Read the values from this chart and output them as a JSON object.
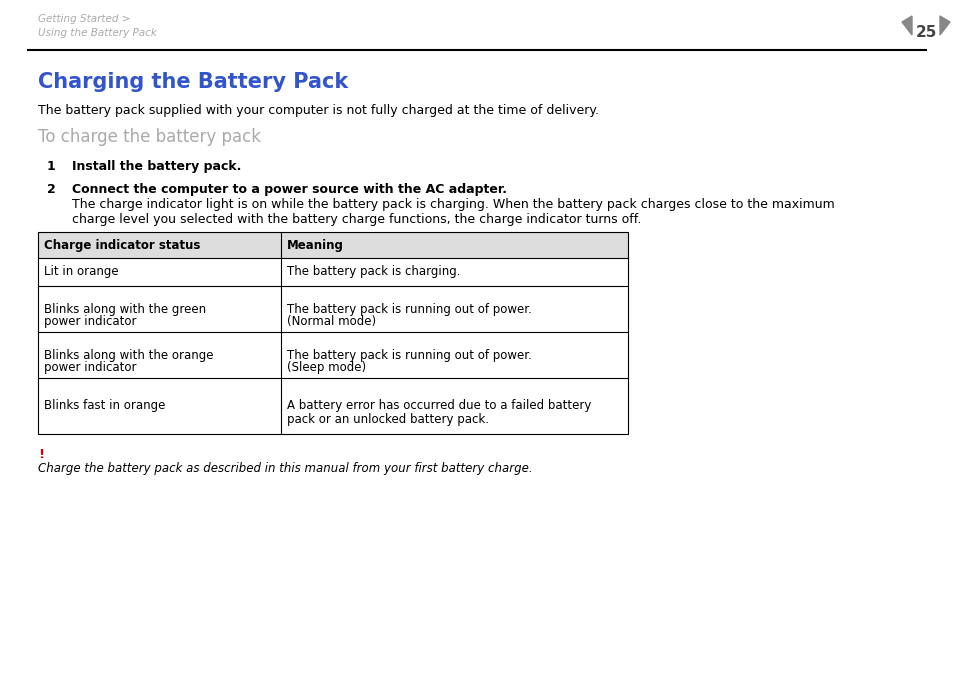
{
  "bg_color": "#ffffff",
  "header_breadcrumb_line1": "Getting Started >",
  "header_breadcrumb_line2": "Using the Battery Pack",
  "header_breadcrumb_color": "#aaaaaa",
  "page_number": "25",
  "page_number_color": "#444444",
  "title": "Charging the Battery Pack",
  "title_color": "#3355cc",
  "title_fontsize": 15,
  "body_text_color": "#000000",
  "subheading": "To charge the battery pack",
  "subheading_color": "#aaaaaa",
  "subheading_fontsize": 12,
  "intro_text": "The battery pack supplied with your computer is not fully charged at the time of delivery.",
  "step1_num": "1",
  "step1_text": "Install the battery pack.",
  "step2_num": "2",
  "step2_line1": "Connect the computer to a power source with the AC adapter.",
  "step2_line2a": "The charge indicator light is on while the battery pack is charging. When the battery pack charges close to the maximum",
  "step2_line2b": "charge level you selected with the battery charge functions, the charge indicator turns off.",
  "table_col1_header": "Charge indicator status",
  "table_col2_header": "Meaning",
  "table_rows": [
    [
      "Lit in orange",
      "The battery pack is charging."
    ],
    [
      "Blinks along with the green\npower indicator",
      "The battery pack is running out of power.\n(Normal mode)"
    ],
    [
      "Blinks along with the orange\npower indicator",
      "The battery pack is running out of power.\n(Sleep mode)"
    ],
    [
      "Blinks fast in orange",
      "A battery error has occurred due to a failed battery\npack or an unlocked battery pack."
    ]
  ],
  "note_exclamation": "!",
  "note_exclamation_color": "#cc0000",
  "note_text": "Charge the battery pack as described in this manual from your first battery charge.",
  "note_text_color": "#000000",
  "separator_color": "#000000",
  "table_border_color": "#000000",
  "table_header_bg": "#dddddd",
  "arrow_color": "#888888"
}
